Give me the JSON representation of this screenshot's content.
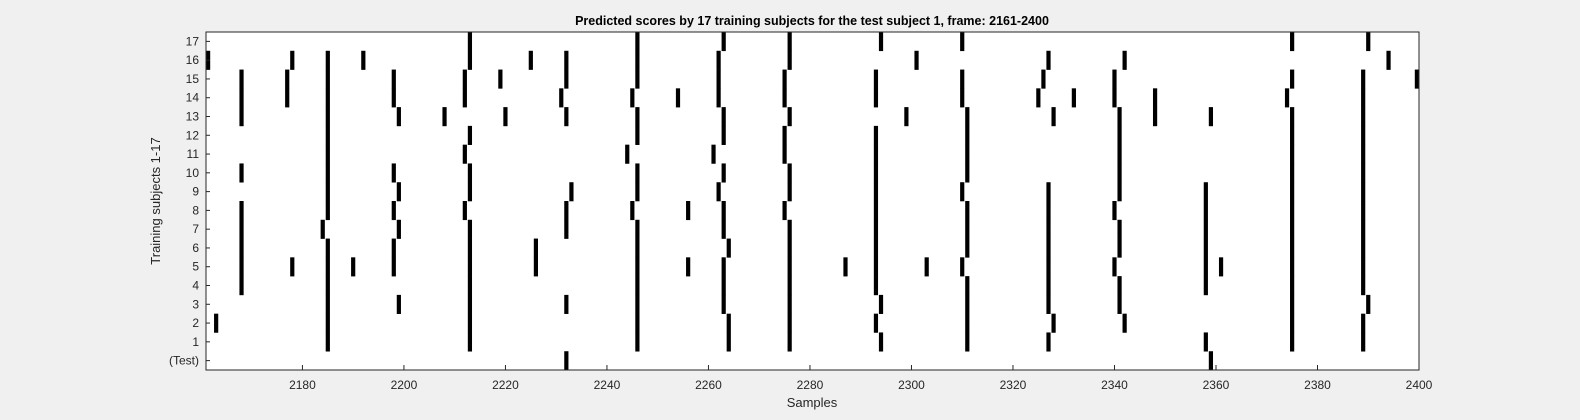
{
  "chart_data": {
    "type": "heatmap",
    "title": "Predicted scores by 17 training subjects for the test subject 1, frame: 2161-2400",
    "xlabel": "Samples",
    "ylabel": "Training subjects 1-17",
    "xlim": [
      2161,
      2400
    ],
    "xticks": [
      2180,
      2200,
      2220,
      2240,
      2260,
      2280,
      2300,
      2320,
      2340,
      2360,
      2380,
      2400
    ],
    "rows": [
      "(Test)",
      "1",
      "2",
      "3",
      "4",
      "5",
      "6",
      "7",
      "8",
      "9",
      "10",
      "11",
      "12",
      "13",
      "14",
      "15",
      "16",
      "17"
    ],
    "colors": {
      "mark": "#000000",
      "background": "#ffffff",
      "figure": "#f0f0f0"
    },
    "marks": {
      "(Test)": [
        2232,
        2359
      ],
      "1": [
        2185,
        2213,
        2246,
        2264,
        2276,
        2294,
        2311,
        2327,
        2358,
        2375,
        2389
      ],
      "2": [
        2163,
        2185,
        2213,
        2246,
        2264,
        2276,
        2293,
        2311,
        2328,
        2342,
        2375,
        2389
      ],
      "3": [
        2185,
        2199,
        2213,
        2232,
        2246,
        2263,
        2276,
        2294,
        2311,
        2327,
        2341,
        2375,
        2390
      ],
      "4": [
        2168,
        2185,
        2213,
        2246,
        2263,
        2276,
        2293,
        2311,
        2327,
        2341,
        2358,
        2375,
        2389
      ],
      "5": [
        2168,
        2178,
        2185,
        2190,
        2198,
        2213,
        2226,
        2246,
        2256,
        2263,
        2276,
        2287,
        2293,
        2303,
        2310,
        2327,
        2340,
        2358,
        2361,
        2375,
        2389
      ],
      "6": [
        2168,
        2185,
        2198,
        2213,
        2226,
        2246,
        2264,
        2276,
        2293,
        2311,
        2327,
        2341,
        2358,
        2375,
        2389
      ],
      "7": [
        2168,
        2184,
        2199,
        2213,
        2232,
        2246,
        2263,
        2276,
        2293,
        2311,
        2327,
        2341,
        2358,
        2375,
        2389
      ],
      "8": [
        2168,
        2185,
        2198,
        2212,
        2232,
        2245,
        2256,
        2263,
        2275,
        2293,
        2311,
        2327,
        2340,
        2358,
        2375,
        2389
      ],
      "9": [
        2185,
        2199,
        2213,
        2233,
        2246,
        2262,
        2276,
        2293,
        2310,
        2327,
        2341,
        2358,
        2375,
        2389
      ],
      "10": [
        2168,
        2185,
        2198,
        2213,
        2246,
        2263,
        2276,
        2293,
        2311,
        2341,
        2375,
        2389
      ],
      "11": [
        2185,
        2212,
        2244,
        2261,
        2275,
        2293,
        2311,
        2341,
        2375,
        2389
      ],
      "12": [
        2185,
        2213,
        2246,
        2263,
        2275,
        2293,
        2311,
        2341,
        2375,
        2389
      ],
      "13": [
        2168,
        2185,
        2199,
        2208,
        2220,
        2232,
        2246,
        2263,
        2276,
        2299,
        2311,
        2328,
        2341,
        2348,
        2359,
        2375,
        2389
      ],
      "14": [
        2168,
        2177,
        2185,
        2198,
        2212,
        2231,
        2245,
        2254,
        2262,
        2275,
        2293,
        2310,
        2325,
        2332,
        2340,
        2348,
        2374,
        2389
      ],
      "15": [
        2168,
        2177,
        2185,
        2198,
        2212,
        2219,
        2232,
        2246,
        2262,
        2275,
        2293,
        2310,
        2326,
        2340,
        2375,
        2389,
        2400
      ],
      "16": [
        2161,
        2178,
        2185,
        2192,
        2213,
        2225,
        2232,
        2246,
        2262,
        2276,
        2301,
        2327,
        2342,
        2394
      ],
      "17": [
        2213,
        2246,
        2263,
        2276,
        2294,
        2310,
        2375,
        2390
      ]
    }
  }
}
